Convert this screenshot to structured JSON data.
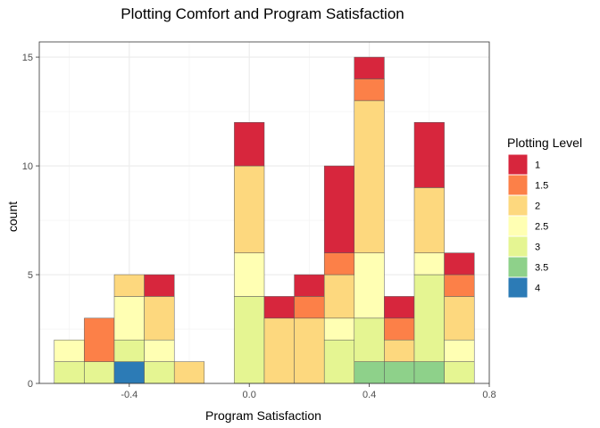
{
  "chart_data": {
    "type": "bar",
    "stacked": true,
    "title": "Plotting Comfort and Program Satisfaction",
    "xlabel": "Program Satisfaction",
    "ylabel": "count",
    "xlim": [
      -0.7,
      0.8
    ],
    "ylim": [
      0,
      15.7
    ],
    "x_ticks": [
      -0.4,
      0.0,
      0.4,
      0.8
    ],
    "x_tick_labels": [
      "-0.4",
      "0.0",
      "0.4",
      "0.8"
    ],
    "y_ticks": [
      0,
      5,
      10,
      15
    ],
    "y_tick_labels": [
      "0",
      "5",
      "10",
      "15"
    ],
    "grid": true,
    "bin_width": 0.1,
    "bin_centers": [
      -0.6,
      -0.5,
      -0.4,
      -0.3,
      -0.2,
      -0.1,
      0.0,
      0.1,
      0.2,
      0.3,
      0.4,
      0.5,
      0.6,
      0.7
    ],
    "legend": {
      "title": "Plotting Level",
      "placement": "right"
    },
    "series": [
      {
        "name": "1",
        "color": "#D7263D",
        "values": [
          0,
          0,
          0,
          1,
          0,
          0,
          2,
          1,
          1,
          4,
          1,
          1,
          3,
          1
        ]
      },
      {
        "name": "1.5",
        "color": "#FC8048",
        "values": [
          0,
          2,
          0,
          0,
          0,
          0,
          0,
          0,
          1,
          1,
          1,
          1,
          0,
          1
        ]
      },
      {
        "name": "2",
        "color": "#FDD87E",
        "values": [
          0,
          0,
          1,
          2,
          1,
          0,
          4,
          3,
          3,
          2,
          7,
          1,
          3,
          2
        ]
      },
      {
        "name": "2.5",
        "color": "#FFFFB3",
        "values": [
          1,
          0,
          2,
          1,
          0,
          0,
          2,
          0,
          0,
          1,
          3,
          0,
          1,
          1
        ]
      },
      {
        "name": "3",
        "color": "#E5F592",
        "values": [
          1,
          1,
          1,
          1,
          0,
          0,
          4,
          0,
          0,
          2,
          2,
          0,
          4,
          1
        ]
      },
      {
        "name": "3.5",
        "color": "#8ED18A",
        "values": [
          0,
          0,
          0,
          0,
          0,
          0,
          0,
          0,
          0,
          0,
          1,
          1,
          1,
          0
        ]
      },
      {
        "name": "4",
        "color": "#2C7BB6",
        "values": [
          0,
          0,
          1,
          0,
          0,
          0,
          0,
          0,
          0,
          0,
          0,
          0,
          0,
          0
        ]
      }
    ]
  }
}
